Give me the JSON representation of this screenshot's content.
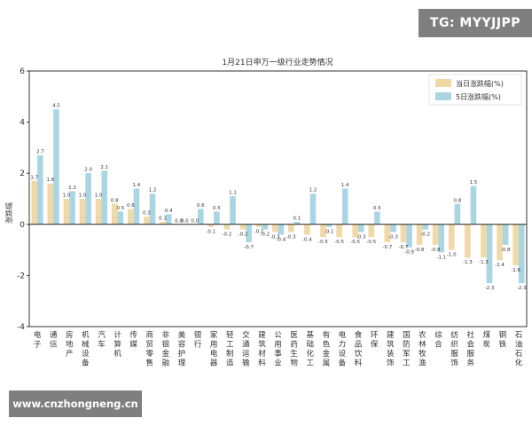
{
  "watermarks": {
    "top": "TG: MYYJJPP",
    "bottom": "www.cnzhongneng.cn"
  },
  "colors": {
    "daily": "#f0d9a6",
    "five_day": "#a9d6e2",
    "zero_line": "#222222",
    "frame": "#333333"
  },
  "chart_data": {
    "type": "bar",
    "title": "1月21日申万一级行业走势情况",
    "ylabel": "涨跌幅",
    "ylim": [
      -4,
      6
    ],
    "yticks": [
      -4,
      -2,
      0,
      2,
      4,
      6
    ],
    "ytick_labels": [
      "-4",
      "-2",
      "0",
      "2",
      "4",
      "6"
    ],
    "legend_position": "top-right",
    "grid": false,
    "categories": [
      "电子",
      "通信",
      "房地产",
      "机械设备",
      "汽车",
      "计算机",
      "传媒",
      "商贸零售",
      "非银金融",
      "美容护理",
      "银行",
      "家用电器",
      "轻工制造",
      "交通运输",
      "建筑材料",
      "公用事业",
      "医药生物",
      "基础化工",
      "有色金属",
      "电力设备",
      "食品饮料",
      "环保",
      "建筑装饰",
      "国防军工",
      "农林牧渔",
      "综合",
      "纺织服饰",
      "社会服务",
      "煤炭",
      "钢铁",
      "石油石化"
    ],
    "series": [
      {
        "name": "当日涨跌幅(%)",
        "values": [
          1.7,
          1.6,
          1.0,
          1.0,
          1.0,
          0.8,
          0.6,
          0.3,
          0.1,
          0.0,
          0.0,
          -0.1,
          -0.2,
          -0.2,
          -0.1,
          -0.3,
          -0.3,
          -0.4,
          -0.5,
          -0.5,
          -0.5,
          -0.5,
          -0.7,
          -0.7,
          -0.8,
          -0.8,
          -1.0,
          -1.3,
          -1.3,
          -1.4,
          -1.6
        ]
      },
      {
        "name": "5日涨跌幅(%)",
        "values": [
          2.7,
          4.5,
          1.3,
          2.0,
          2.1,
          0.5,
          1.4,
          1.2,
          0.4,
          0.0,
          0.6,
          0.5,
          1.1,
          -0.7,
          -0.2,
          -0.4,
          0.1,
          1.2,
          -0.1,
          1.4,
          -0.3,
          0.5,
          -0.3,
          -0.9,
          -0.2,
          -1.1,
          0.8,
          1.5,
          -2.3,
          -0.8,
          -2.3
        ]
      }
    ]
  }
}
